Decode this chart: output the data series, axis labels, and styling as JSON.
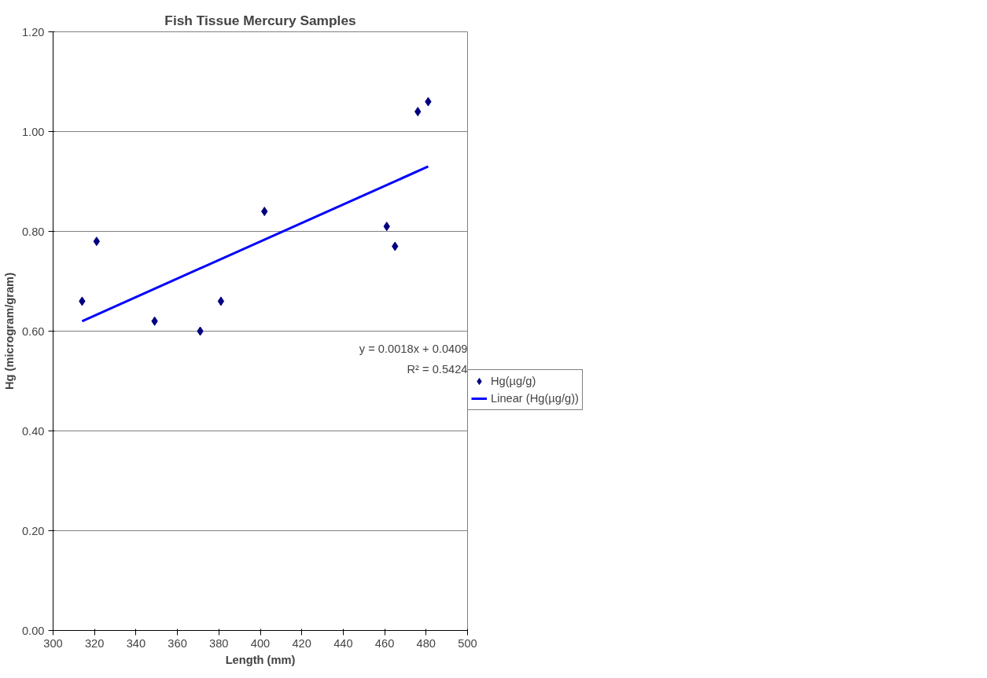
{
  "chart_data": {
    "type": "scatter",
    "title": "Fish Tissue Mercury Samples",
    "xlabel": "Length (mm)",
    "ylabel": "Hg (microgram/gram)",
    "xlim": [
      300,
      500
    ],
    "xticks": [
      300,
      320,
      340,
      360,
      380,
      400,
      420,
      440,
      460,
      480,
      500
    ],
    "ylim": [
      0,
      1.2
    ],
    "yticks": [
      {
        "value": 0,
        "label": "0.00"
      },
      {
        "value": 0.2,
        "label": "0.20"
      },
      {
        "value": 0.4,
        "label": "0.40"
      },
      {
        "value": 0.6,
        "label": "0.60"
      },
      {
        "value": 0.8,
        "label": "0.80"
      },
      {
        "value": 1.0,
        "label": "1.00"
      },
      {
        "value": 1.2,
        "label": "1.20"
      }
    ],
    "grid": "y",
    "legend": "right",
    "series": [
      {
        "name": "Hg(µg/g)",
        "type": "scatter",
        "marker": "diamond",
        "color": "#000080",
        "x": [
          314,
          321,
          349,
          371,
          381,
          402,
          461,
          465,
          476,
          481
        ],
        "values": [
          0.66,
          0.78,
          0.62,
          0.6,
          0.66,
          0.84,
          0.81,
          0.77,
          1.04,
          1.06
        ]
      },
      {
        "name": "Linear (Hg(µg/g))",
        "type": "line",
        "marker": "none",
        "line_style": "solid",
        "color": "#0000ff",
        "x": [
          314,
          481
        ],
        "values": [
          0.62,
          0.93
        ]
      }
    ],
    "annotations": [
      "y = 0.0018x + 0.0409",
      "R² = 0.5424"
    ]
  }
}
